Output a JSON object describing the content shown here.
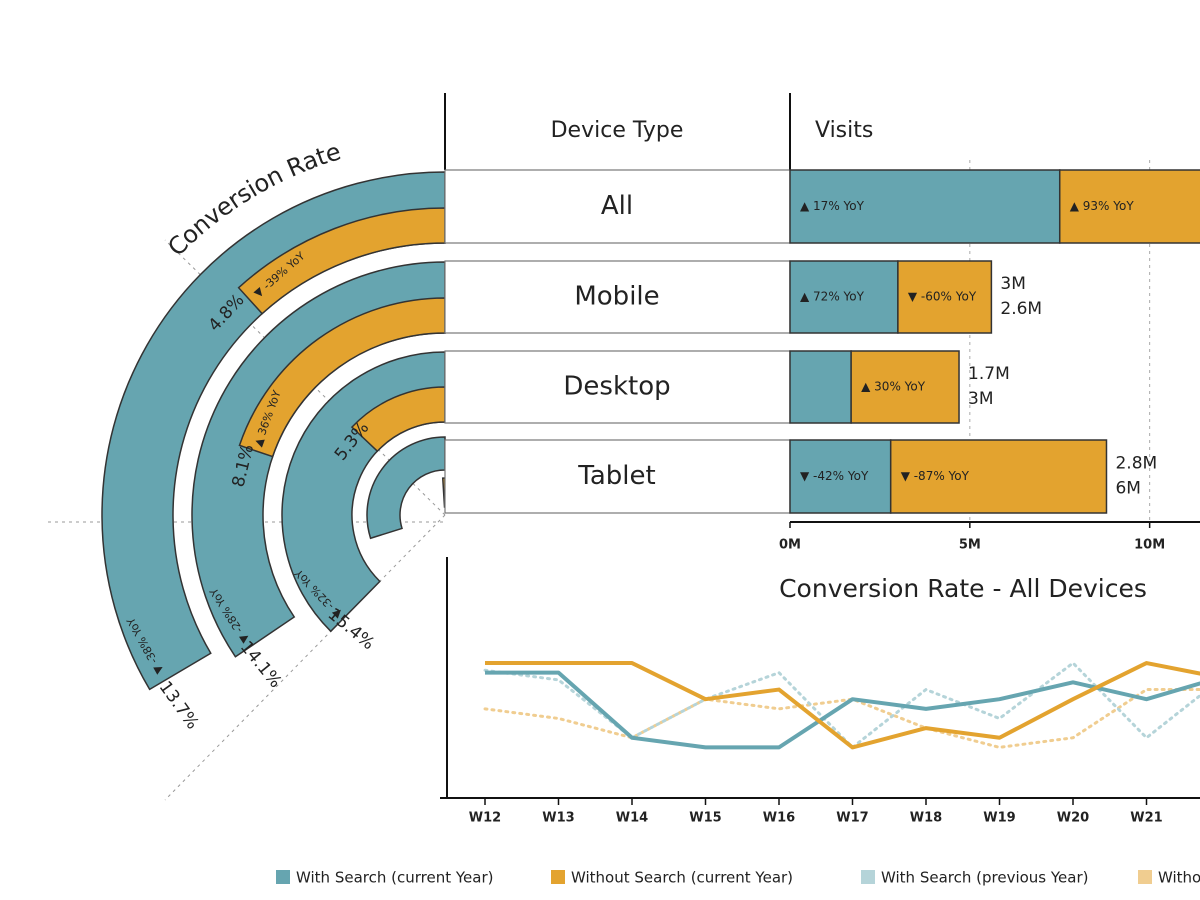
{
  "chart_data": [
    {
      "type": "radial",
      "title": "Conversion Rate",
      "series": [
        {
          "color": "#66a5b0",
          "values": [
            13.7,
            14.1,
            15.4,
            12.2
          ],
          "value_labels": [
            "13.7%",
            "14.1%",
            "15.4%",
            null
          ],
          "yoy": [
            "▼ -38% YoY",
            "▼ -28% YoY",
            "▼ -32% YoY",
            null
          ]
        },
        {
          "color": "#e3a32f",
          "values": [
            4.8,
            8.1,
            5.3,
            0.4
          ],
          "value_labels": [
            "4.8%",
            "8.1%",
            "5.3%",
            null
          ],
          "yoy": [
            "▼ -39% YoY",
            "▲ 36% YoY",
            null,
            null
          ]
        }
      ]
    },
    {
      "type": "hbar",
      "columns": [
        "Device Type",
        "Visits"
      ],
      "categories": [
        "All",
        "Mobile",
        "Desktop",
        "Tablet"
      ],
      "series": [
        {
          "color": "#66a5b0",
          "values": [
            7.5,
            3,
            1.7,
            2.8
          ],
          "value_labels": [
            null,
            "3M",
            "1.7M",
            "2.8M"
          ],
          "yoy": [
            "▲ 17% YoY",
            "▲ 72% YoY",
            null,
            "▼ -42% YoY"
          ]
        },
        {
          "color": "#e3a32f",
          "values": [
            6,
            2.6,
            3,
            6
          ],
          "value_labels": [
            null,
            "2.6M",
            "3M",
            "6M"
          ],
          "yoy": [
            "▲ 93% YoY",
            "▼ -60% YoY",
            "▲ 30% YoY",
            "▼ -87% YoY"
          ]
        }
      ],
      "xlim": [
        0,
        11.4
      ],
      "xticks": [
        {
          "value": 0,
          "label": "0M"
        },
        {
          "value": 5,
          "label": "5M"
        },
        {
          "value": 10,
          "label": "10M"
        }
      ],
      "grid": true
    },
    {
      "type": "line",
      "title": "Conversion Rate - All Devices",
      "categories": [
        "W12",
        "W13",
        "W14",
        "W15",
        "W16",
        "W17",
        "W18",
        "W19",
        "W20",
        "W21",
        null
      ],
      "ylim": [
        0,
        100
      ],
      "series": [
        {
          "name": "With Search (current Year)",
          "color": "#66a5b0",
          "style": "solid",
          "values": [
            52,
            52,
            25,
            21,
            21,
            41,
            37,
            41,
            48,
            41,
            50
          ]
        },
        {
          "name": "Without Search (current Year)",
          "color": "#e3a32f",
          "style": "solid",
          "values": [
            56,
            56,
            56,
            41,
            45,
            21,
            29,
            25,
            41,
            56,
            50
          ]
        },
        {
          "name": "With Search (previous Year)",
          "color": "#b5d4d9",
          "style": "dotted",
          "values": [
            53,
            49,
            25,
            41,
            52,
            21,
            45,
            33,
            56,
            25,
            49
          ]
        },
        {
          "name": "Without Search (previous Year)",
          "color": "#f0cd90",
          "style": "dotted",
          "values": [
            37,
            33,
            25,
            41,
            37,
            41,
            29,
            21,
            25,
            45,
            45
          ]
        }
      ]
    }
  ]
}
